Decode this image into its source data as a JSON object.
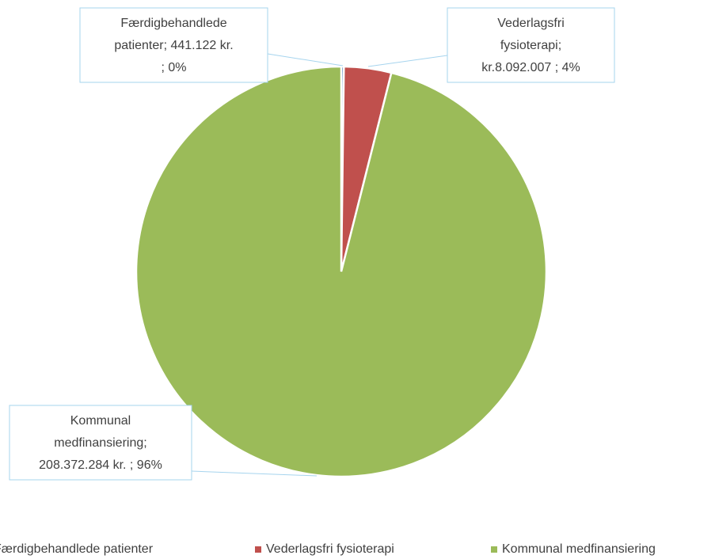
{
  "chart_data": {
    "type": "pie",
    "categories": [
      "Færdigbehandlede patienter",
      "Vederlagsfri fysioterapi",
      "Kommunal medfinansiering"
    ],
    "values": [
      441122,
      8092007,
      208372284
    ],
    "value_labels": [
      [
        "Færdigbehandlede",
        "patienter;  441.122 kr.",
        "; 0%"
      ],
      [
        "Vederlagsfri",
        "fysioterapi;",
        "kr.8.092.007 ; 4%"
      ],
      [
        "Kommunal",
        "medfinansiering;",
        "208.372.284 kr. ; 96%"
      ]
    ],
    "colors": [
      "#4f81bd",
      "#c0504d",
      "#9bbb59"
    ],
    "legend": "bottom"
  }
}
